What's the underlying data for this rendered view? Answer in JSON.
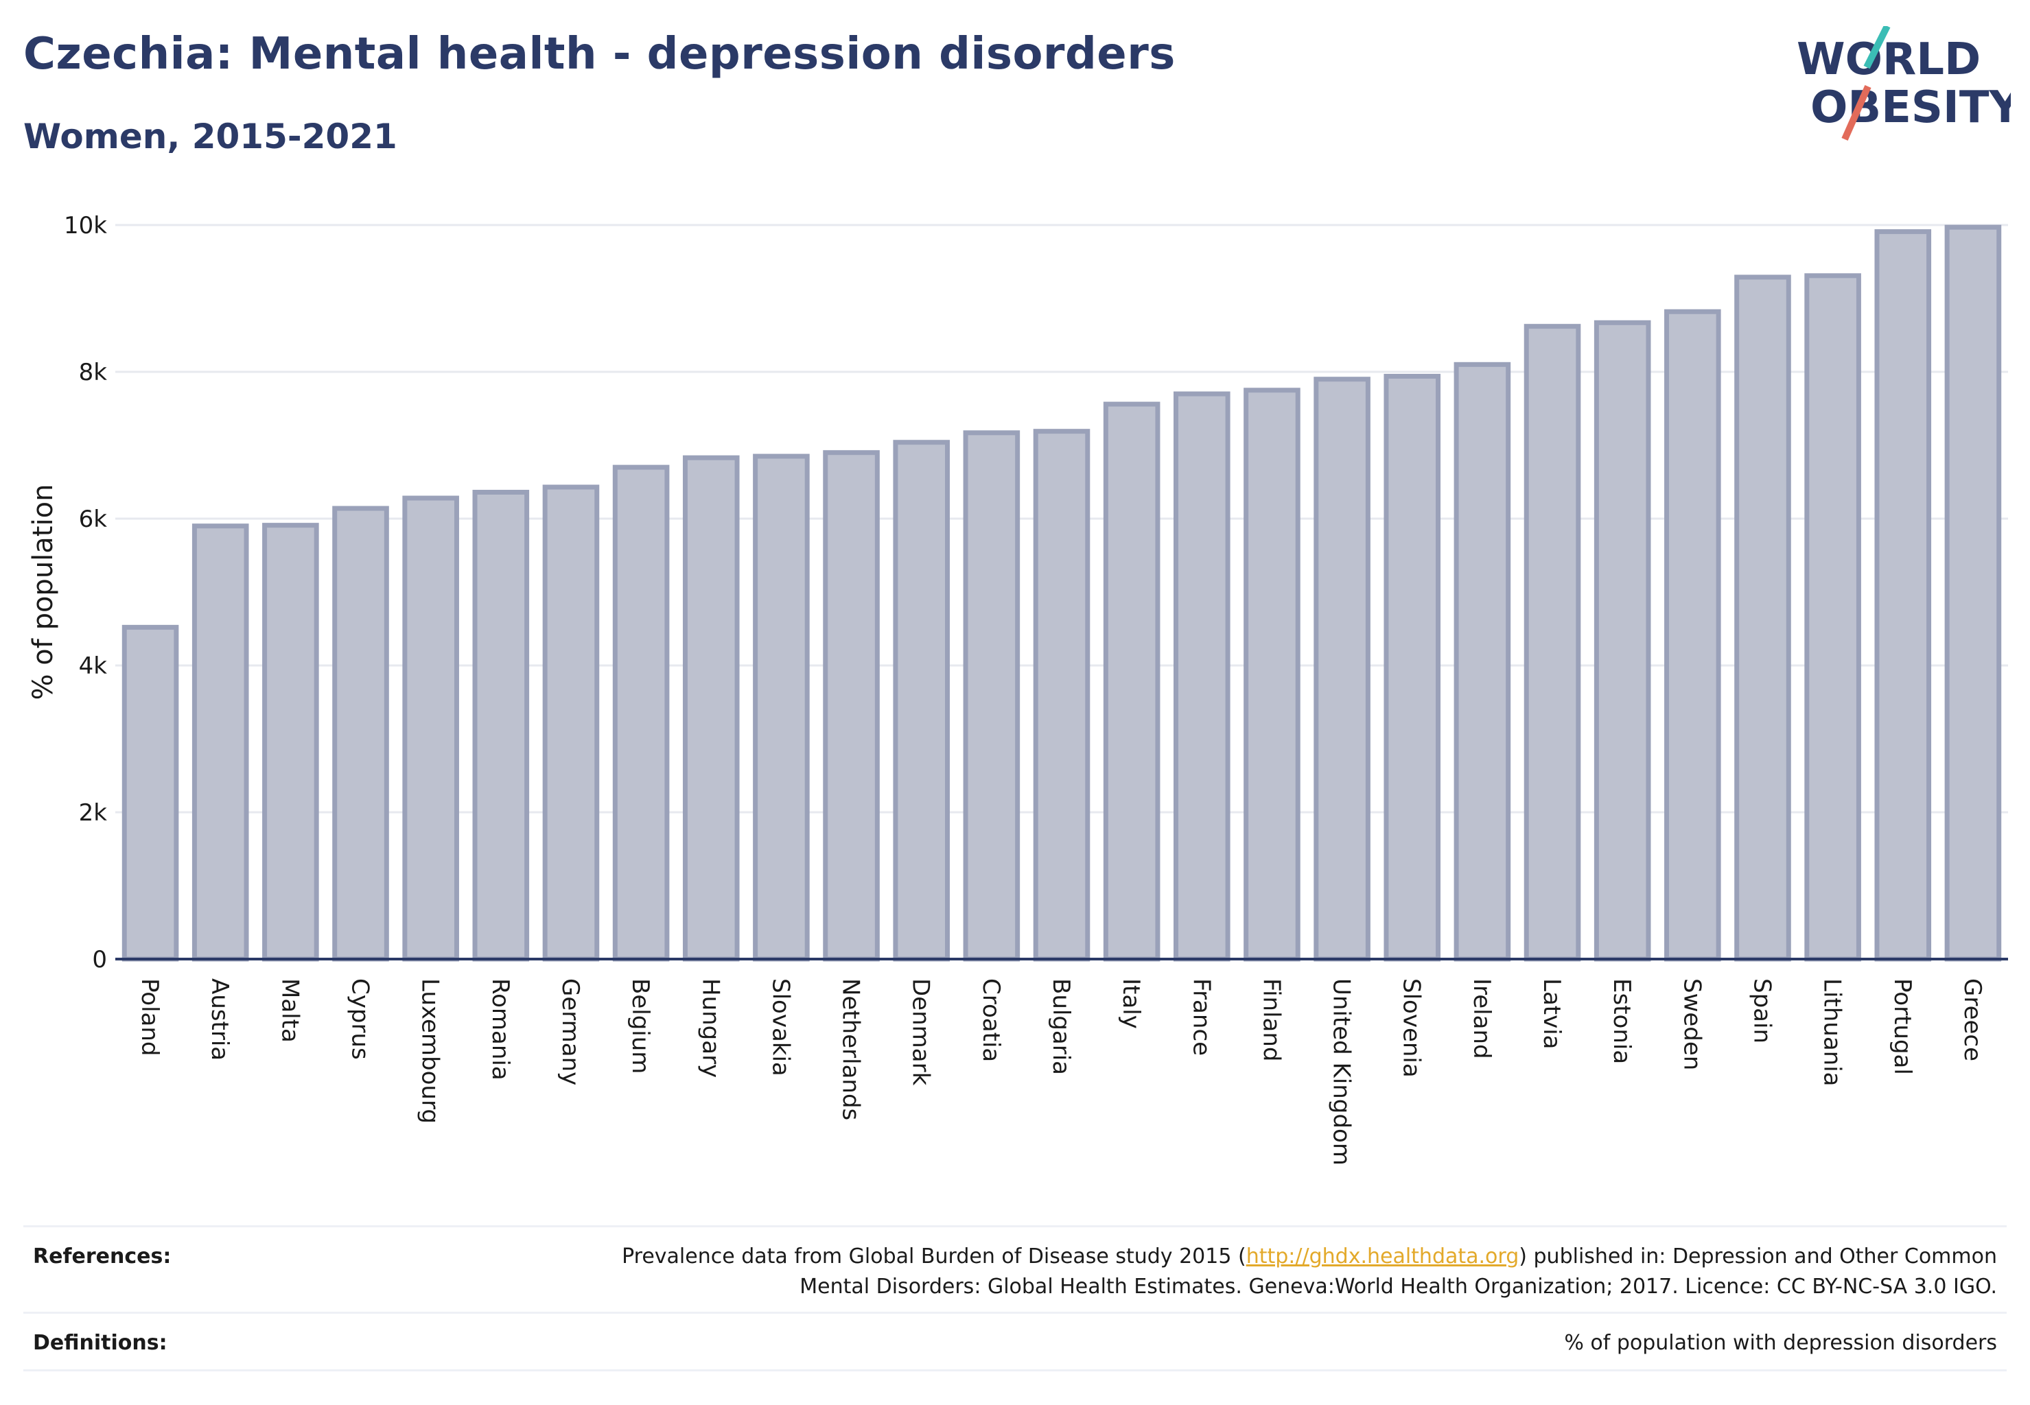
{
  "title": "Czechia: Mental health - depression disorders",
  "subtitle": "Women, 2015-2021",
  "logo": {
    "line1": "WORLD",
    "line2": "OBESITY"
  },
  "colors": {
    "bar_fill": "#bdc1cf",
    "bar_stroke": "#9aa1b9",
    "title": "#2b3a67",
    "grid": "#e7e9ef",
    "link": "#e3a92a"
  },
  "chart_data": {
    "type": "bar",
    "categories": [
      "Poland",
      "Austria",
      "Malta",
      "Cyprus",
      "Luxembourg",
      "Romania",
      "Germany",
      "Belgium",
      "Hungary",
      "Slovakia",
      "Netherlands",
      "Denmark",
      "Croatia",
      "Bulgaria",
      "Italy",
      "France",
      "Finland",
      "United Kingdom",
      "Slovenia",
      "Ireland",
      "Latvia",
      "Estonia",
      "Sweden",
      "Spain",
      "Lithuania",
      "Portugal",
      "Greece"
    ],
    "values": [
      4520,
      5900,
      5910,
      6140,
      6280,
      6360,
      6430,
      6700,
      6830,
      6850,
      6900,
      7040,
      7170,
      7190,
      7560,
      7700,
      7750,
      7900,
      7940,
      8100,
      8620,
      8670,
      8820,
      9290,
      9310,
      9910,
      9970
    ],
    "ylabel": "% of population",
    "xlabel": "",
    "ylim": [
      0,
      10000
    ],
    "yticks": [
      0,
      2000,
      4000,
      6000,
      8000,
      10000
    ],
    "ytick_labels": [
      "0",
      "2k",
      "4k",
      "6k",
      "8k",
      "10k"
    ],
    "grid": true
  },
  "footer": {
    "references_label": "References:",
    "references_line1_before": "Prevalence data from Global Burden of Disease study 2015 (",
    "references_link": "http://ghdx.healthdata.org",
    "references_line1_after": ") published in: Depression and Other Common",
    "references_line2": "Mental Disorders: Global Health Estimates. Geneva:World Health Organization; 2017. Licence: CC BY-NC-SA 3.0 IGO.",
    "definitions_label": "Definitions:",
    "definitions_text": "% of population with depression disorders"
  }
}
